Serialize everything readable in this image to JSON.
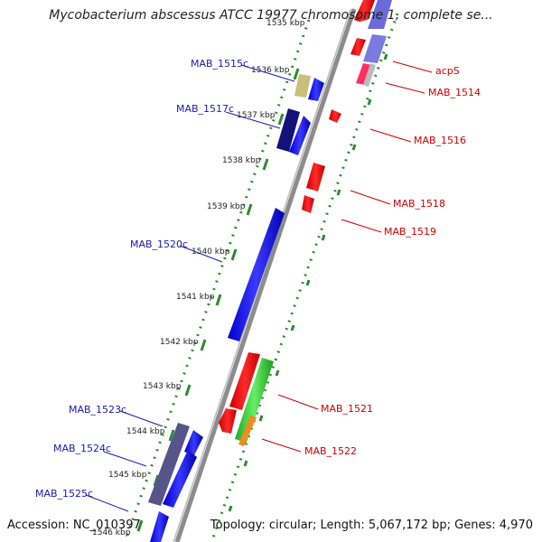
{
  "title": "Mycobacterium abscessus ATCC 19977 chromosome 1, complete se...",
  "footer": {
    "accession": "Accession: NC_010397",
    "summary": "Topology: circular; Length: 5,067,172 bp; Genes: 4,970"
  },
  "ticks": [
    "1535 kbp",
    "1536 kbp",
    "1537 kbp",
    "1538 kbp",
    "1539 kbp",
    "1540 kbp",
    "1541 kbp",
    "1542 kbp",
    "1543 kbp",
    "1544 kbp",
    "1545 kbp",
    "1546 kbp"
  ],
  "genes_left": [
    "MAB_1515c",
    "MAB_1517c",
    "MAB_1520c",
    "MAB_1523c",
    "MAB_1524c",
    "MAB_1525c"
  ],
  "genes_right": [
    "acpS",
    "MAB_1514",
    "MAB_1516",
    "MAB_1518",
    "MAB_1519",
    "MAB_1521",
    "MAB_1522"
  ],
  "colors": {
    "reverse_label": "#1a1aa8",
    "forward_label": "#cc0000",
    "backbone": "#8c8c8c",
    "tick_dots": "#2e8b2e"
  }
}
